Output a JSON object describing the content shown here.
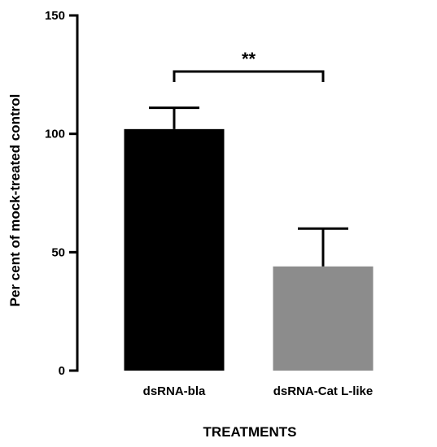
{
  "chart_data": {
    "type": "bar",
    "categories": [
      "dsRNA-bla",
      "dsRNA-Cat L-like"
    ],
    "values": [
      102,
      44
    ],
    "error_upper": [
      111,
      60
    ],
    "bar_colors": [
      "#000000",
      "#8c8c8c"
    ],
    "xlabel": "TREATMENTS",
    "ylabel": "Per cent of mock-treated control",
    "ylim": [
      0,
      150
    ],
    "yticks": [
      0,
      50,
      100,
      150
    ],
    "significance": {
      "between": [
        0,
        1
      ],
      "label": "**"
    },
    "grid": false,
    "legend": "none"
  }
}
